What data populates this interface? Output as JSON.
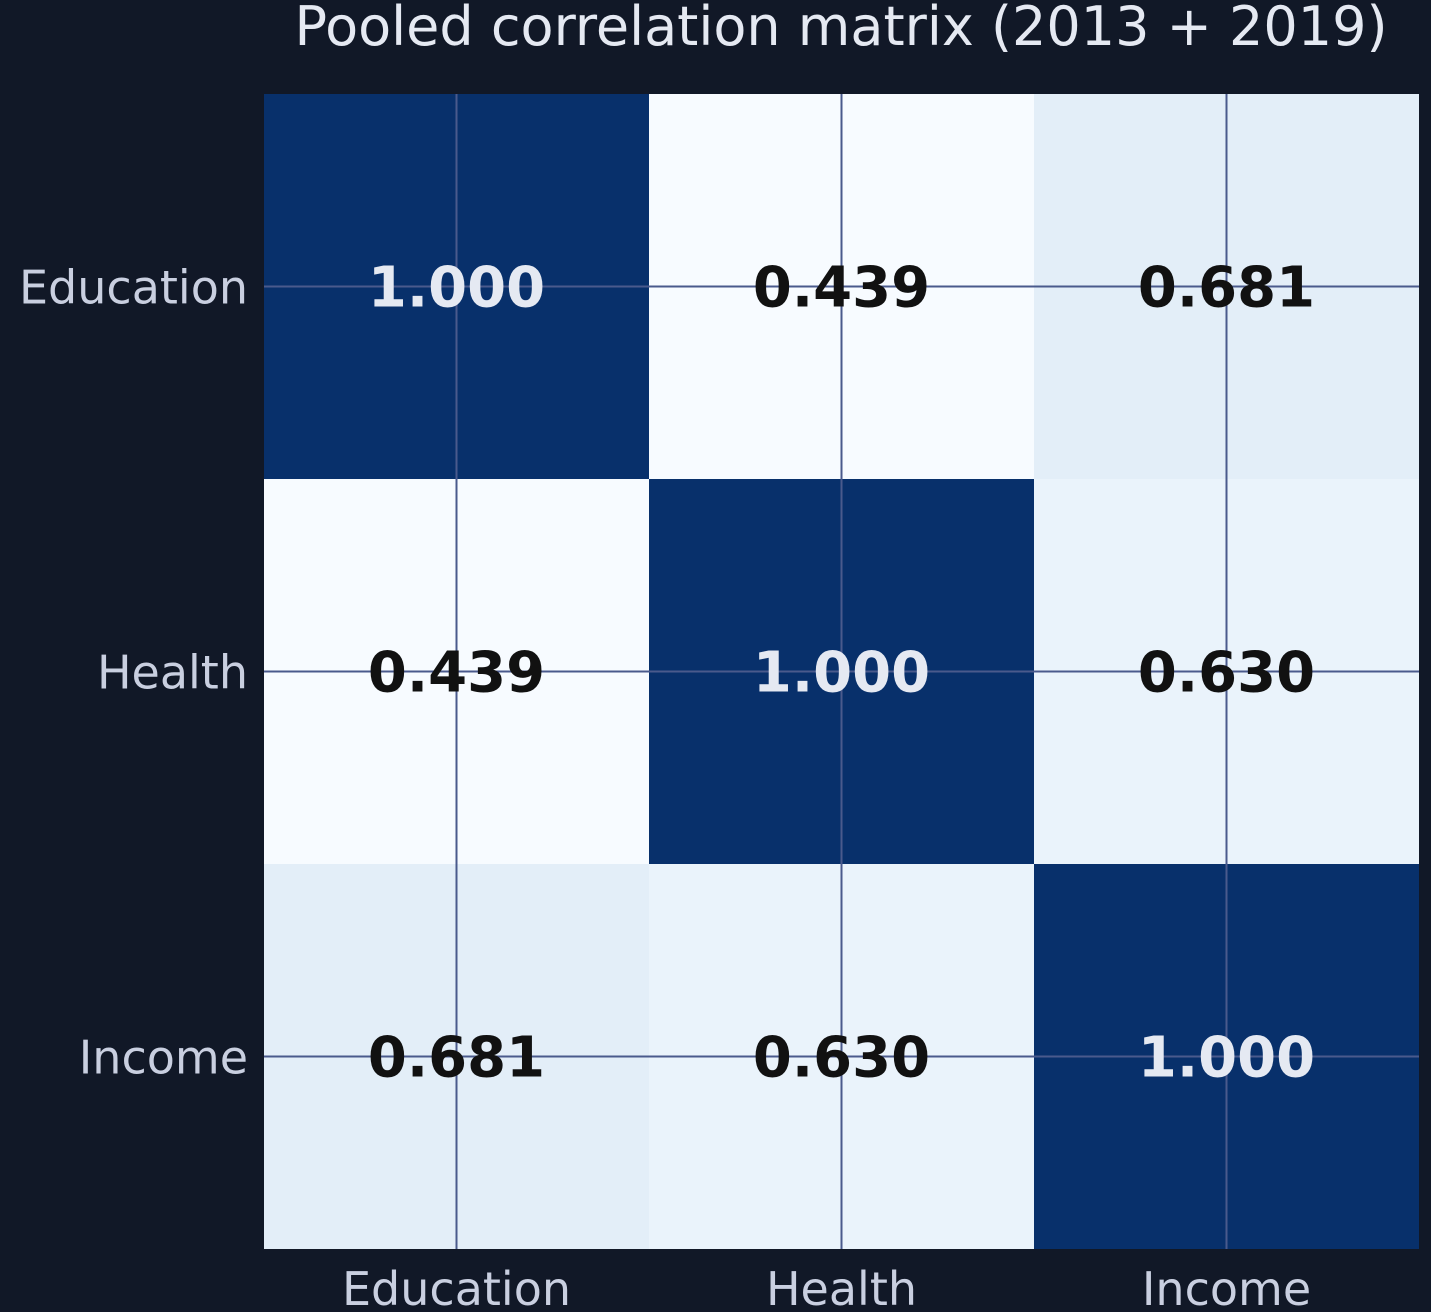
{
  "chart_data": {
    "type": "heatmap",
    "title": "Pooled correlation matrix (2013 + 2019)",
    "x_labels": [
      "Education",
      "Health",
      "Income"
    ],
    "y_labels": [
      "Education",
      "Health",
      "Income"
    ],
    "values": [
      [
        1.0,
        0.439,
        0.681
      ],
      [
        0.439,
        1.0,
        0.63
      ],
      [
        0.681,
        0.63,
        1.0
      ]
    ],
    "value_labels": [
      [
        "1.000",
        "0.439",
        "0.681"
      ],
      [
        "0.439",
        "1.000",
        "0.630"
      ],
      [
        "0.681",
        "0.630",
        "1.000"
      ]
    ],
    "colormap": "Blues",
    "color_range": [
      0.439,
      1.0
    ],
    "grid": true,
    "legend": "none"
  },
  "colors": {
    "background": "#111827",
    "grid": "#4a5a8c",
    "text_light": "#e5e9f2",
    "text_dark": "#111111",
    "tick_label": "#c9cfe0",
    "title": "#e5e9f2"
  }
}
